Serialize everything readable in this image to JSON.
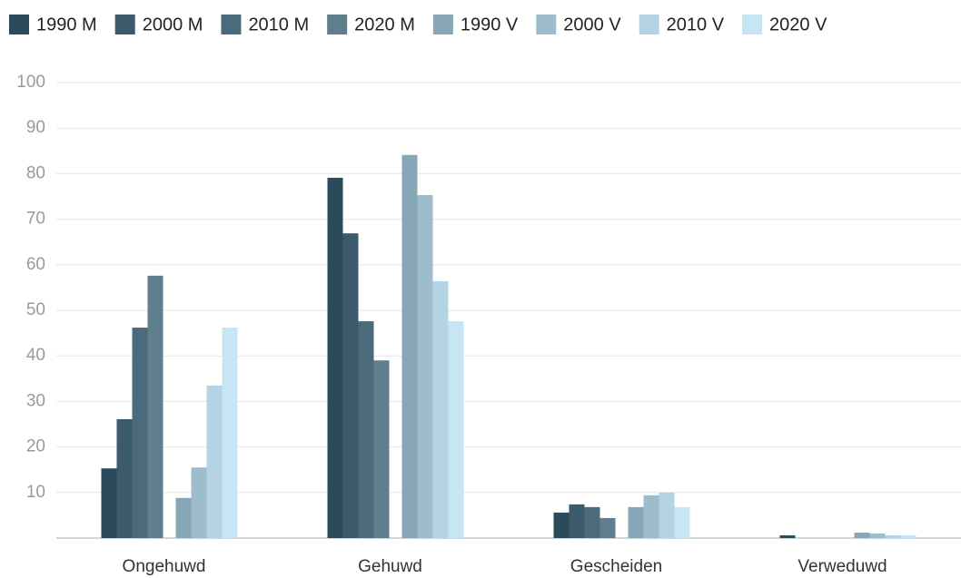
{
  "chart_data": {
    "type": "bar",
    "categories": [
      "Ongehuwd",
      "Gehuwd",
      "Gescheiden",
      "Verweduwd"
    ],
    "series": [
      {
        "name": "1990 M",
        "color": "#2b4a5a",
        "values": [
          15.3,
          79.1,
          5.6,
          0.6
        ]
      },
      {
        "name": "2000 M",
        "color": "#3b5a6b",
        "values": [
          26.1,
          66.9,
          7.4,
          0
        ]
      },
      {
        "name": "2010 M",
        "color": "#4b6b7c",
        "values": [
          46.2,
          47.6,
          6.8,
          0
        ]
      },
      {
        "name": "2020 M",
        "color": "#5f7e8e",
        "values": [
          57.6,
          39.0,
          4.4,
          0
        ]
      },
      {
        "name": "1990 V",
        "color": "#87a6b6",
        "values": [
          8.8,
          84.1,
          6.8,
          1.2
        ]
      },
      {
        "name": "2000 V",
        "color": "#9ebdcc",
        "values": [
          15.5,
          75.3,
          9.4,
          1.0
        ]
      },
      {
        "name": "2010 V",
        "color": "#b4d4e4",
        "values": [
          33.5,
          56.4,
          10.0,
          0.6
        ]
      },
      {
        "name": "2020 V",
        "color": "#c6e6f4",
        "values": [
          46.2,
          47.6,
          6.8,
          0.6
        ]
      }
    ],
    "ylim": [
      0,
      100
    ],
    "yticks": [
      10,
      20,
      30,
      40,
      50,
      60,
      70,
      80,
      90,
      100
    ],
    "grid": true,
    "legend": "top"
  }
}
